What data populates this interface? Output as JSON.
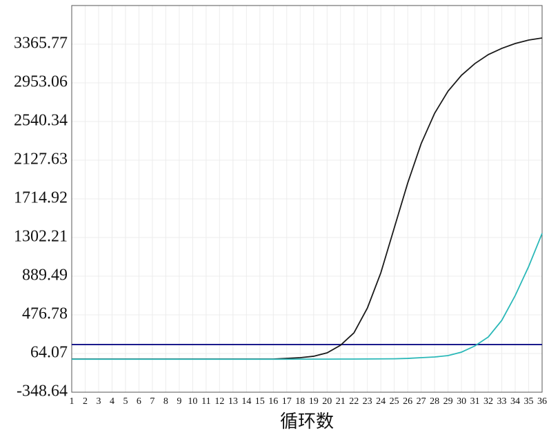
{
  "chart_data": {
    "type": "line",
    "x_label": "循环数",
    "x": [
      1,
      2,
      3,
      4,
      5,
      6,
      7,
      8,
      9,
      10,
      11,
      12,
      13,
      14,
      15,
      16,
      17,
      18,
      19,
      20,
      21,
      22,
      23,
      24,
      25,
      26,
      27,
      28,
      29,
      30,
      31,
      32,
      33,
      34,
      35,
      36
    ],
    "xlim": [
      1,
      36
    ],
    "xticks": [
      1,
      2,
      3,
      4,
      5,
      6,
      7,
      8,
      9,
      10,
      11,
      12,
      13,
      14,
      15,
      16,
      17,
      18,
      19,
      20,
      21,
      22,
      23,
      24,
      25,
      26,
      27,
      28,
      29,
      30,
      31,
      32,
      33,
      34,
      35,
      36
    ],
    "ylim": [
      -348.64,
      3778.48
    ],
    "yticks": [
      -348.64,
      64.07,
      476.78,
      889.49,
      1302.21,
      1714.92,
      2127.63,
      2540.34,
      2953.06,
      3365.77
    ],
    "grid": true,
    "threshold": 160,
    "threshold_color": "#1a1a8c",
    "series": [
      {
        "color": "#1a1a1a",
        "values": [
          5,
          5,
          5,
          5,
          5,
          5,
          5,
          5,
          5,
          5,
          5,
          5,
          5,
          5,
          5,
          5,
          12,
          20,
          35,
          71,
          152,
          285,
          550,
          926,
          1405,
          1884,
          2304,
          2628,
          2864,
          3034,
          3159,
          3255,
          3321,
          3373,
          3410,
          3432
        ]
      },
      {
        "color": "#2ab8b8",
        "values": [
          3,
          3,
          3,
          3,
          3,
          3,
          3,
          3,
          3,
          3,
          3,
          3,
          3,
          3,
          3,
          3,
          3,
          4,
          4,
          4,
          5,
          5,
          6,
          7,
          8,
          12,
          20,
          27,
          42,
          79,
          145,
          241,
          418,
          683,
          993,
          1346
        ]
      }
    ]
  }
}
